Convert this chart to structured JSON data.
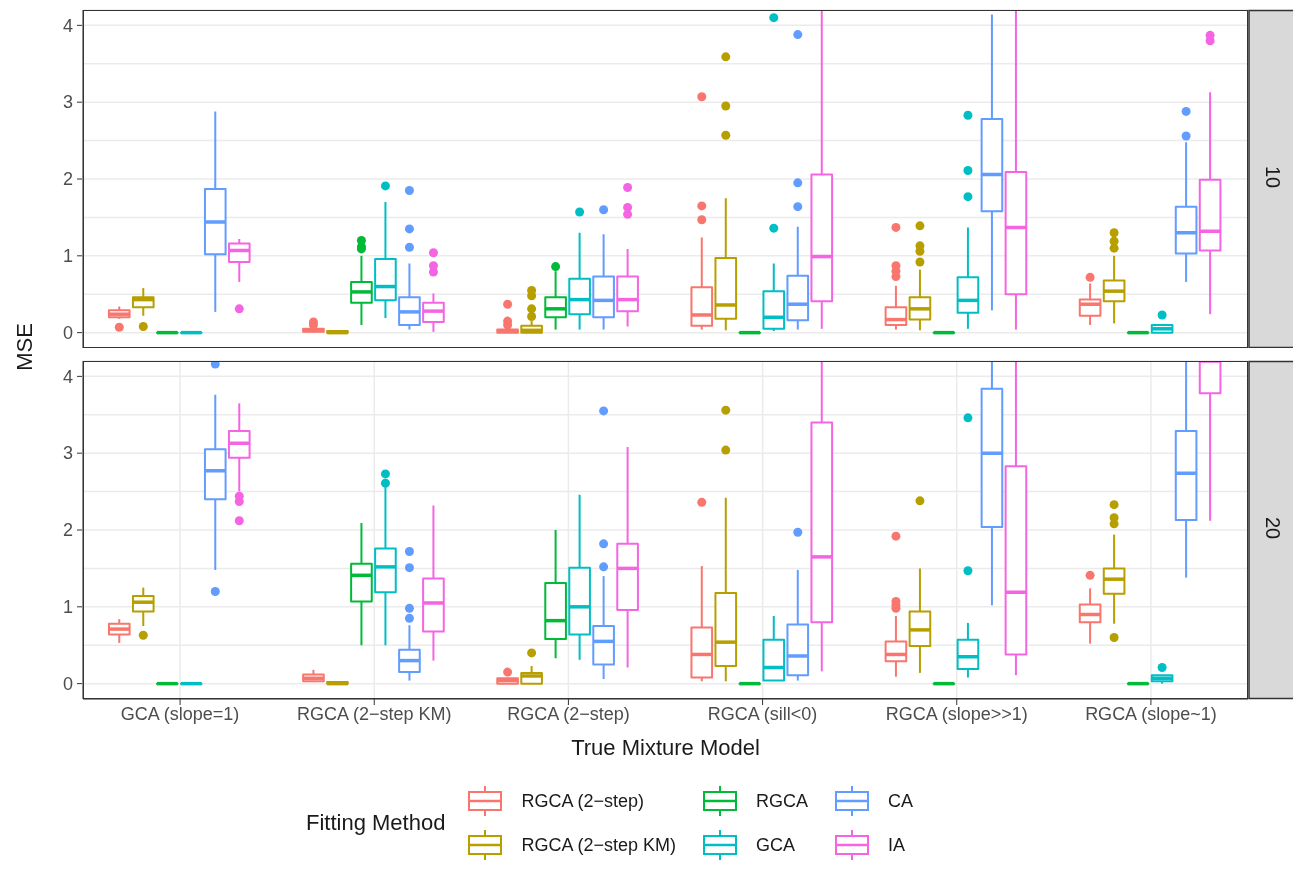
{
  "chart_data": [
    {
      "type": "box",
      "annotations": [
        "10"
      ],
      "ylabel": "MSE",
      "categories": [
        null,
        null,
        null,
        null,
        null,
        null
      ],
      "ylim": [
        -0.2,
        4.2
      ],
      "yticks": [
        0,
        {
          "value": 0.5,
          "label": null
        },
        1,
        {
          "value": 1.5,
          "label": null
        },
        2,
        {
          "value": 2.5,
          "label": null
        },
        3,
        {
          "value": 3.5,
          "label": null
        },
        4
      ],
      "grid": true,
      "tick_labels": "y",
      "series": [
        {
          "color": "#f8766d",
          "boxes": [
            {
              "low": 0.18,
              "q1": 0.2,
              "median": 0.24,
              "q3": 0.29,
              "high": 0.34,
              "outliers": [
                0.07
              ]
            },
            {
              "low": 0,
              "q1": 0.01,
              "median": 0.03,
              "q3": 0.05,
              "high": 0.06,
              "outliers": [
                0.1,
                0.14
              ]
            },
            {
              "low": 0,
              "q1": 0,
              "median": 0.02,
              "q3": 0.04,
              "high": 0.06,
              "outliers": [
                0.37,
                0.15,
                0.1
              ]
            },
            {
              "low": 0.04,
              "q1": 0.09,
              "median": 0.23,
              "q3": 0.59,
              "high": 1.24,
              "outliers": [
                1.47,
                1.65,
                3.07
              ]
            },
            {
              "low": 0.04,
              "q1": 0.1,
              "median": 0.17,
              "q3": 0.33,
              "high": 0.61,
              "outliers": [
                0.73,
                0.8,
                0.87,
                1.37
              ]
            },
            {
              "low": 0.1,
              "q1": 0.22,
              "median": 0.37,
              "q3": 0.43,
              "high": 0.64,
              "outliers": [
                0.72
              ]
            }
          ]
        },
        {
          "color": "#b79f00",
          "boxes": [
            {
              "low": 0.22,
              "q1": 0.33,
              "median": 0.43,
              "q3": 0.46,
              "high": 0.58,
              "outliers": [
                0.08
              ]
            },
            {
              "low": 0,
              "q1": 0,
              "median": 0,
              "q3": 0.02,
              "high": 0.02
            },
            {
              "low": 0,
              "q1": 0,
              "median": 0.03,
              "q3": 0.09,
              "high": 0.15,
              "outliers": [
                0.21,
                0.31,
                0.48,
                0.55
              ]
            },
            {
              "low": 0.03,
              "q1": 0.18,
              "median": 0.36,
              "q3": 0.97,
              "high": 1.75,
              "outliers": [
                2.57,
                2.95,
                3.59
              ]
            },
            {
              "low": 0.03,
              "q1": 0.17,
              "median": 0.31,
              "q3": 0.46,
              "high": 0.82,
              "outliers": [
                0.92,
                1.06,
                1.13,
                1.39
              ]
            },
            {
              "low": 0.12,
              "q1": 0.41,
              "median": 0.54,
              "q3": 0.68,
              "high": 1,
              "outliers": [
                1.1,
                1.19,
                1.3
              ]
            }
          ]
        },
        {
          "color": "#00ba38",
          "boxes": [
            {
              "low": 0,
              "q1": 0,
              "median": 0,
              "q3": 0,
              "high": 0
            },
            {
              "low": 0.1,
              "q1": 0.39,
              "median": 0.53,
              "q3": 0.66,
              "high": 1,
              "outliers": [
                1.09,
                1.12,
                1.2
              ]
            },
            {
              "low": 0.04,
              "q1": 0.2,
              "median": 0.31,
              "q3": 0.46,
              "high": 0.8,
              "outliers": [
                0.86
              ]
            },
            {
              "low": 0,
              "q1": 0,
              "median": 0,
              "q3": 0,
              "high": 0
            },
            {
              "low": 0,
              "q1": 0,
              "median": 0,
              "q3": 0,
              "high": 0
            },
            {
              "low": 0,
              "q1": 0,
              "median": 0,
              "q3": 0,
              "high": 0
            }
          ]
        },
        {
          "color": "#00bfc4",
          "boxes": [
            {
              "low": 0,
              "q1": 0,
              "median": 0,
              "q3": 0,
              "high": 0
            },
            {
              "low": 0.19,
              "q1": 0.42,
              "median": 0.6,
              "q3": 0.96,
              "high": 1.7,
              "outliers": [
                1.91
              ]
            },
            {
              "low": 0.04,
              "q1": 0.24,
              "median": 0.43,
              "q3": 0.7,
              "high": 1.3,
              "outliers": [
                1.57
              ]
            },
            {
              "low": 0.02,
              "q1": 0.05,
              "median": 0.2,
              "q3": 0.54,
              "high": 0.9,
              "outliers": [
                1.36,
                4.1
              ]
            },
            {
              "low": 0.05,
              "q1": 0.26,
              "median": 0.42,
              "q3": 0.72,
              "high": 1.37,
              "outliers": [
                1.77,
                2.11,
                2.83
              ]
            },
            {
              "low": 0,
              "q1": 0,
              "median": 0.05,
              "q3": 0.1,
              "high": 0.1,
              "outliers": [
                0.23
              ]
            }
          ]
        },
        {
          "color": "#619cff",
          "boxes": [
            {
              "low": 0.27,
              "q1": 1.02,
              "median": 1.44,
              "q3": 1.87,
              "high": 2.88
            },
            {
              "low": 0.04,
              "q1": 0.1,
              "median": 0.27,
              "q3": 0.46,
              "high": 0.9,
              "outliers": [
                1.11,
                1.35,
                1.85
              ]
            },
            {
              "low": 0.04,
              "q1": 0.2,
              "median": 0.42,
              "q3": 0.73,
              "high": 1.28,
              "outliers": [
                1.6
              ]
            },
            {
              "low": 0.04,
              "q1": 0.16,
              "median": 0.37,
              "q3": 0.74,
              "high": 1.38,
              "outliers": [
                1.64,
                1.95,
                3.88
              ]
            },
            {
              "low": 0.29,
              "q1": 1.58,
              "median": 2.06,
              "q3": 2.78,
              "high": 4.14
            },
            {
              "low": 0.66,
              "q1": 1.03,
              "median": 1.3,
              "q3": 1.64,
              "high": 2.48,
              "outliers": [
                2.56,
                2.88
              ]
            }
          ]
        },
        {
          "color": "#f564e3",
          "boxes": [
            {
              "low": 0.66,
              "q1": 0.92,
              "median": 1.07,
              "q3": 1.16,
              "high": 1.22,
              "outliers": [
                0.31
              ]
            },
            {
              "low": 0.01,
              "q1": 0.14,
              "median": 0.28,
              "q3": 0.39,
              "high": 0.51,
              "outliers": [
                0.79,
                0.87,
                1.04
              ]
            },
            {
              "low": 0.08,
              "q1": 0.28,
              "median": 0.43,
              "q3": 0.73,
              "high": 1.09,
              "outliers": [
                1.54,
                1.63,
                1.89
              ]
            },
            {
              "low": 0.05,
              "q1": 0.41,
              "median": 0.99,
              "q3": 2.06,
              "high": 4.2
            },
            {
              "low": 0.04,
              "q1": 0.5,
              "median": 1.37,
              "q3": 2.09,
              "high": 4.2
            },
            {
              "low": 0.24,
              "q1": 1.07,
              "median": 1.32,
              "q3": 1.99,
              "high": 3.13,
              "outliers": [
                3.8,
                3.87
              ]
            }
          ]
        }
      ]
    },
    {
      "type": "box",
      "annotations": [
        "20"
      ],
      "xlabel": "True Mixture Model",
      "legend_title": "Fitting Method",
      "legend": "bottom",
      "categories": [
        "GCA (slope=1)",
        "RGCA (2−step KM)",
        "RGCA (2−step)",
        "RGCA (sill<0)",
        "RGCA (slope>>1)",
        "RGCA (slope~1)"
      ],
      "ylim": [
        -0.2,
        4.2
      ],
      "yticks": [
        0,
        {
          "value": 0.5,
          "label": null
        },
        1,
        {
          "value": 1.5,
          "label": null
        },
        2,
        {
          "value": 2.5,
          "label": null
        },
        3,
        {
          "value": 3.5,
          "label": null
        },
        4
      ],
      "grid": true,
      "series": [
        {
          "name": "RGCA (2−step)",
          "color": "#f8766d",
          "boxes": [
            {
              "low": 0.53,
              "q1": 0.64,
              "median": 0.71,
              "q3": 0.78,
              "high": 0.84
            },
            {
              "low": 0.02,
              "q1": 0.03,
              "median": 0.07,
              "q3": 0.12,
              "high": 0.18
            },
            {
              "low": 0,
              "q1": 0,
              "median": 0.04,
              "q3": 0.07,
              "high": 0.07,
              "outliers": [
                0.15
              ]
            },
            {
              "low": 0.03,
              "q1": 0.08,
              "median": 0.38,
              "q3": 0.73,
              "high": 1.53,
              "outliers": [
                2.36
              ]
            },
            {
              "low": 0.09,
              "q1": 0.29,
              "median": 0.38,
              "q3": 0.55,
              "high": 0.88,
              "outliers": [
                0.98,
                1.02,
                1.07,
                1.92
              ]
            },
            {
              "low": 0.52,
              "q1": 0.8,
              "median": 0.9,
              "q3": 1.03,
              "high": 1.24,
              "outliers": [
                1.41
              ]
            }
          ]
        },
        {
          "name": "RGCA (2−step KM)",
          "color": "#b79f00",
          "boxes": [
            {
              "low": 0.75,
              "q1": 0.94,
              "median": 1.06,
              "q3": 1.14,
              "high": 1.25,
              "outliers": [
                0.63
              ]
            },
            {
              "low": 0,
              "q1": 0,
              "median": 0,
              "q3": 0.02,
              "high": 0.02
            },
            {
              "low": 0,
              "q1": 0,
              "median": 0.1,
              "q3": 0.14,
              "high": 0.23,
              "outliers": [
                0.4
              ]
            },
            {
              "low": 0.03,
              "q1": 0.23,
              "median": 0.54,
              "q3": 1.18,
              "high": 2.42,
              "outliers": [
                3.04,
                3.56
              ]
            },
            {
              "low": 0.14,
              "q1": 0.49,
              "median": 0.7,
              "q3": 0.94,
              "high": 1.5,
              "outliers": [
                2.38
              ]
            },
            {
              "low": 0.78,
              "q1": 1.17,
              "median": 1.36,
              "q3": 1.5,
              "high": 1.94,
              "outliers": [
                0.6,
                2.08,
                2.16,
                2.33
              ]
            }
          ]
        },
        {
          "name": "RGCA",
          "color": "#00ba38",
          "boxes": [
            {
              "low": 0,
              "q1": 0,
              "median": 0,
              "q3": 0,
              "high": 0
            },
            {
              "low": 0.5,
              "q1": 1.07,
              "median": 1.41,
              "q3": 1.56,
              "high": 2.09
            },
            {
              "low": 0.33,
              "q1": 0.58,
              "median": 0.82,
              "q3": 1.31,
              "high": 2
            },
            {
              "low": 0,
              "q1": 0,
              "median": 0,
              "q3": 0,
              "high": 0
            },
            {
              "low": 0,
              "q1": 0,
              "median": 0,
              "q3": 0,
              "high": 0
            },
            {
              "low": 0,
              "q1": 0,
              "median": 0,
              "q3": 0,
              "high": 0
            }
          ]
        },
        {
          "name": "GCA",
          "color": "#00bfc4",
          "boxes": [
            {
              "low": 0,
              "q1": 0,
              "median": 0,
              "q3": 0,
              "high": 0
            },
            {
              "low": 0.5,
              "q1": 1.19,
              "median": 1.52,
              "q3": 1.76,
              "high": 2.56,
              "outliers": [
                2.61,
                2.73
              ]
            },
            {
              "low": 0.31,
              "q1": 0.64,
              "median": 1,
              "q3": 1.51,
              "high": 2.46
            },
            {
              "low": 0.04,
              "q1": 0.04,
              "median": 0.21,
              "q3": 0.57,
              "high": 0.88
            },
            {
              "low": 0.08,
              "q1": 0.19,
              "median": 0.35,
              "q3": 0.57,
              "high": 0.79,
              "outliers": [
                1.47,
                3.46
              ]
            },
            {
              "low": 0,
              "q1": 0.03,
              "median": 0.07,
              "q3": 0.11,
              "high": 0.11,
              "outliers": [
                0.21
              ]
            }
          ]
        },
        {
          "name": "CA",
          "color": "#619cff",
          "boxes": [
            {
              "low": 1.48,
              "q1": 2.4,
              "median": 2.77,
              "q3": 3.05,
              "high": 3.76,
              "outliers": [
                1.2,
                4.16
              ]
            },
            {
              "low": 0.04,
              "q1": 0.15,
              "median": 0.3,
              "q3": 0.44,
              "high": 0.76,
              "outliers": [
                0.85,
                0.98,
                1.51,
                1.72
              ]
            },
            {
              "low": 0.06,
              "q1": 0.25,
              "median": 0.55,
              "q3": 0.75,
              "high": 1.4,
              "outliers": [
                1.52,
                1.82,
                3.55
              ]
            },
            {
              "low": 0.04,
              "q1": 0.11,
              "median": 0.36,
              "q3": 0.77,
              "high": 1.48,
              "outliers": [
                1.97
              ]
            },
            {
              "low": 1.02,
              "q1": 2.04,
              "median": 3,
              "q3": 3.84,
              "high": 4.2
            },
            {
              "low": 1.38,
              "q1": 2.13,
              "median": 2.74,
              "q3": 3.29,
              "high": 4.2
            }
          ]
        },
        {
          "name": "IA",
          "color": "#f564e3",
          "boxes": [
            {
              "low": 2.5,
              "q1": 2.94,
              "median": 3.13,
              "q3": 3.29,
              "high": 3.65,
              "outliers": [
                2.12,
                2.37,
                2.44
              ]
            },
            {
              "low": 0.3,
              "q1": 0.68,
              "median": 1.05,
              "q3": 1.37,
              "high": 2.32
            },
            {
              "low": 0.21,
              "q1": 0.96,
              "median": 1.5,
              "q3": 1.82,
              "high": 3.08
            },
            {
              "low": 0.16,
              "q1": 0.8,
              "median": 1.65,
              "q3": 3.4,
              "high": 4.2
            },
            {
              "low": 0.11,
              "q1": 0.38,
              "median": 1.19,
              "q3": 2.83,
              "high": 4.2
            },
            {
              "low": 2.12,
              "q1": 3.78,
              "median": 4.2,
              "q3": 4.2,
              "high": 4.2
            }
          ]
        }
      ]
    }
  ]
}
